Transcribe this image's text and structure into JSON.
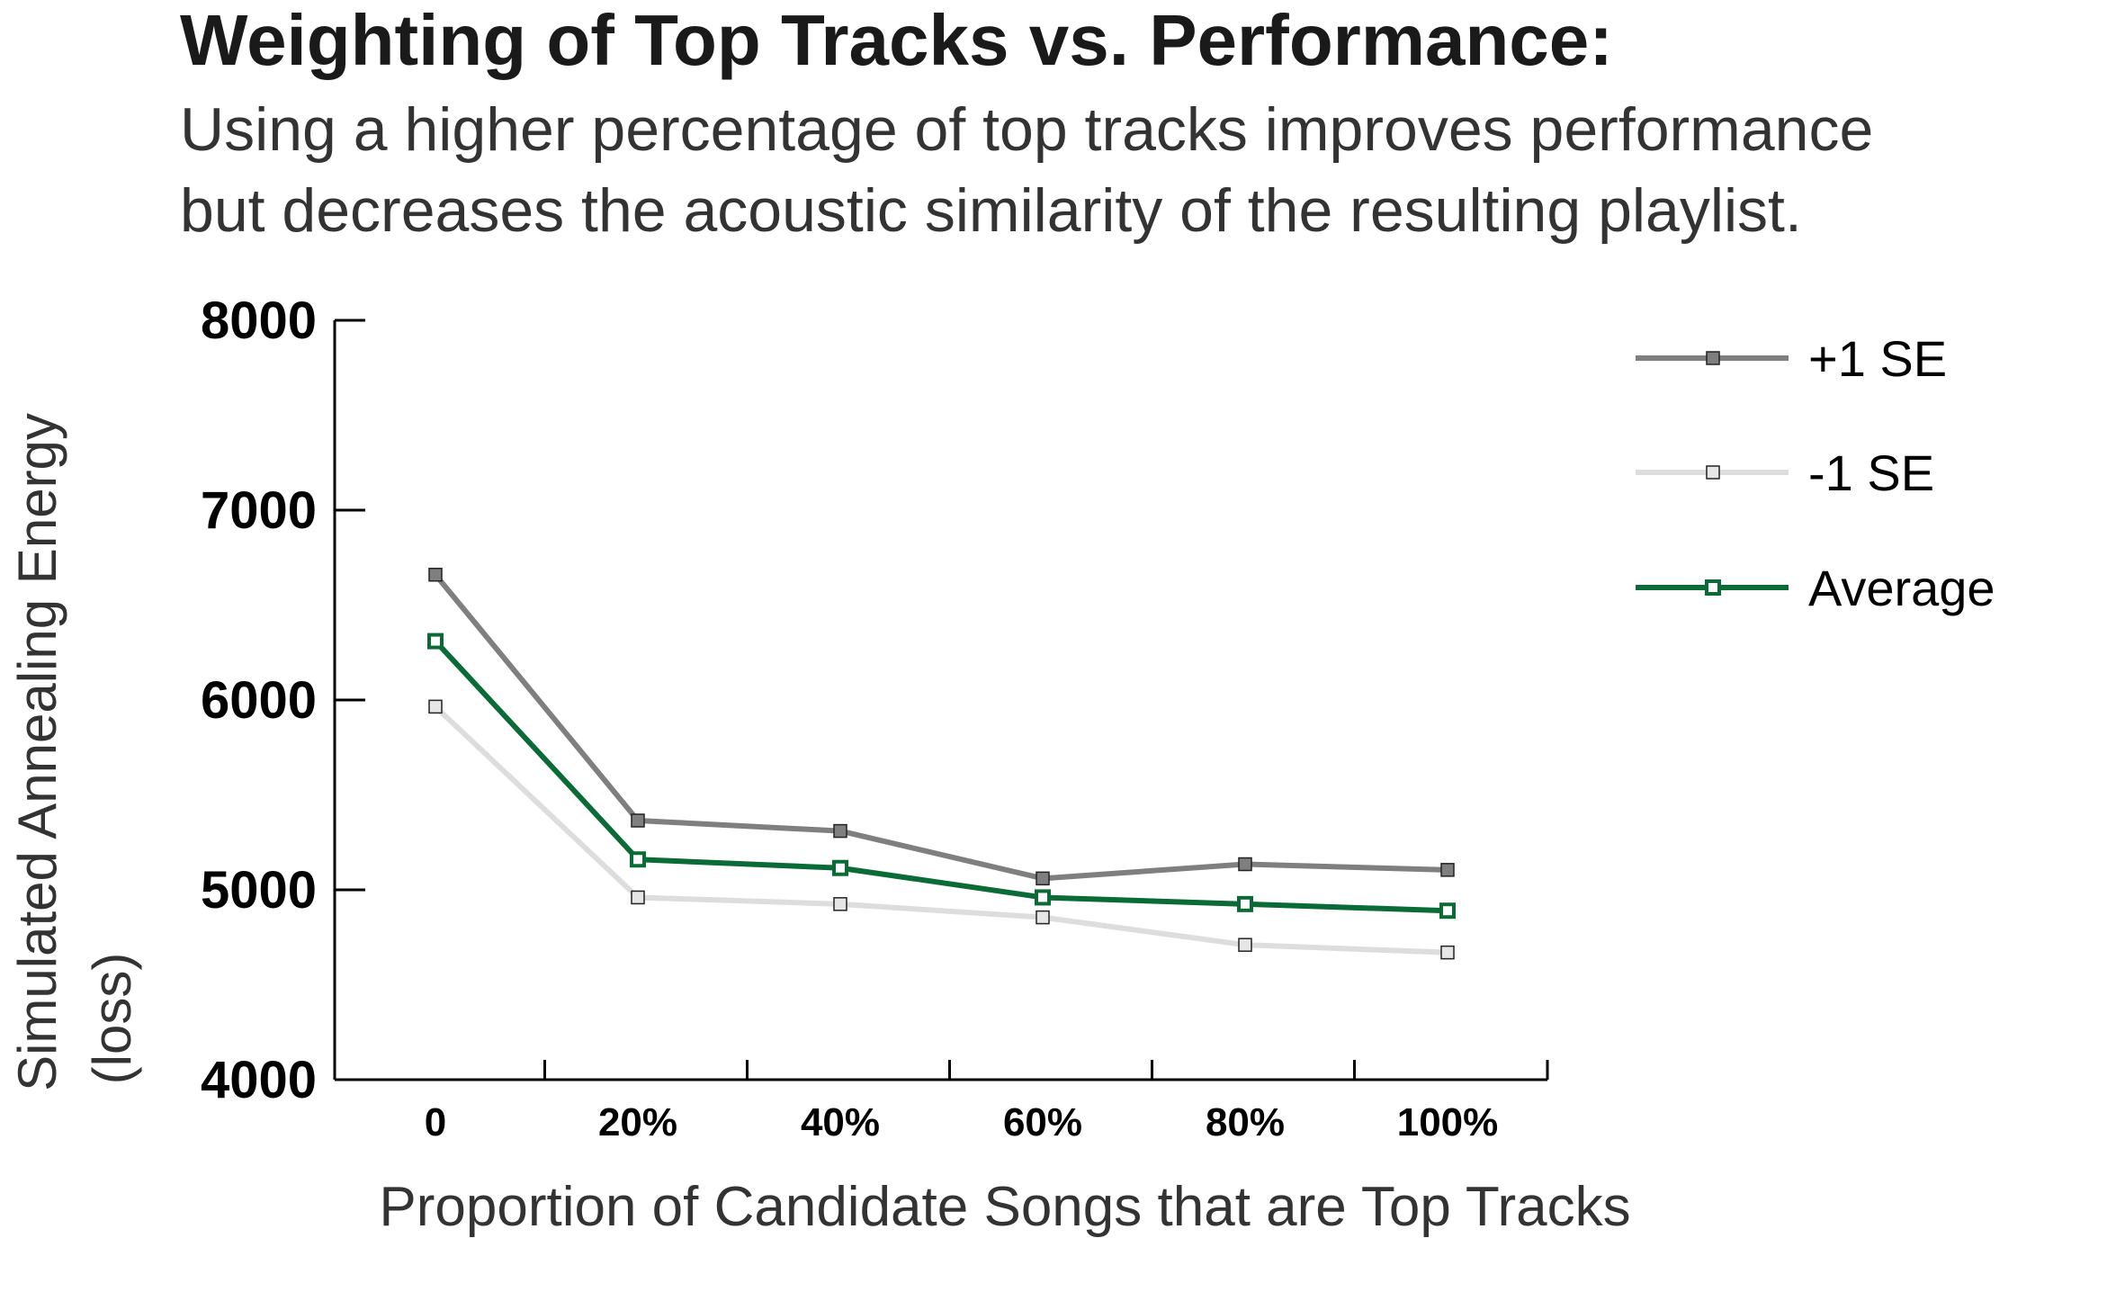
{
  "chart_data": {
    "type": "line",
    "title": "Weighting of Top Tracks vs. Performance:",
    "subtitle": [
      "Using a higher percentage of top tracks improves performance",
      "but decreases the acoustic similarity of the resulting playlist."
    ],
    "xlabel": "Proportion of Candidate Songs that are Top Tracks",
    "ylabel": [
      "Simulated Annealing Energy",
      "(loss)"
    ],
    "categories": [
      "0",
      "20%",
      "40%",
      "60%",
      "80%",
      "100%"
    ],
    "ylim": [
      4000,
      8000
    ],
    "yticks": [
      4000,
      5000,
      6000,
      7000,
      8000
    ],
    "yticklabels": [
      "4000",
      "5000",
      "6000",
      "7000",
      "8000"
    ],
    "grid": false,
    "legend_position": "top-right",
    "series": [
      {
        "name": "+1 SE",
        "values": [
          6660,
          5365,
          5310,
          5060,
          5135,
          5105
        ],
        "color": "#7f7f7f",
        "marker_fill": "#7f7f7f"
      },
      {
        "name": "-1 SE",
        "values": [
          5965,
          4960,
          4925,
          4855,
          4710,
          4670
        ],
        "color": "#dddddd",
        "marker_fill": "#e6e6e6"
      },
      {
        "name": "Average",
        "values": [
          6310,
          5160,
          5115,
          4960,
          4925,
          4890
        ],
        "color": "#0b6b36",
        "marker_fill": "#ffffff"
      }
    ]
  }
}
